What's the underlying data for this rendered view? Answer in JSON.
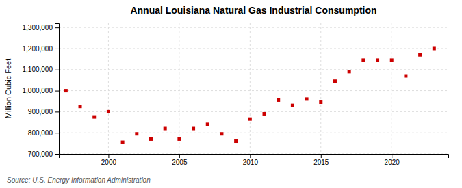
{
  "chart_data": {
    "type": "scatter",
    "title": "Annual Louisiana Natural Gas Industrial Consumption",
    "ylabel": "Million Cubic Feet",
    "annotations": [
      "Source: U.S. Energy Information Administration"
    ],
    "x": [
      1997,
      1998,
      1999,
      2000,
      2001,
      2002,
      2003,
      2004,
      2005,
      2006,
      2007,
      2008,
      2009,
      2010,
      2011,
      2012,
      2013,
      2014,
      2015,
      2016,
      2017,
      2018,
      2019,
      2020,
      2021,
      2022,
      2023
    ],
    "values": [
      1000000,
      925000,
      875000,
      900000,
      755000,
      795000,
      770000,
      820000,
      770000,
      820000,
      840000,
      795000,
      760000,
      865000,
      890000,
      955000,
      930000,
      960000,
      945000,
      1045000,
      1090000,
      1145000,
      1145000,
      1145000,
      1070000,
      1170000,
      1200000
    ],
    "color": "#cc0000",
    "marker": "square",
    "xlim": [
      1996.5,
      2024.0
    ],
    "xticks": [
      2000,
      2005,
      2010,
      2015,
      2020
    ],
    "ylim": [
      700000,
      1320000
    ],
    "yticks": [
      {
        "value": 700000,
        "label": "700,000"
      },
      {
        "value": 800000,
        "label": "800,000"
      },
      {
        "value": 900000,
        "label": "900,000"
      },
      {
        "value": 1000000,
        "label": "1,000,000"
      },
      {
        "value": 1100000,
        "label": "1,100,000"
      },
      {
        "value": 1200000,
        "label": "1,200,000"
      },
      {
        "value": 1300000,
        "label": "1,300,000"
      }
    ],
    "grid": true
  }
}
